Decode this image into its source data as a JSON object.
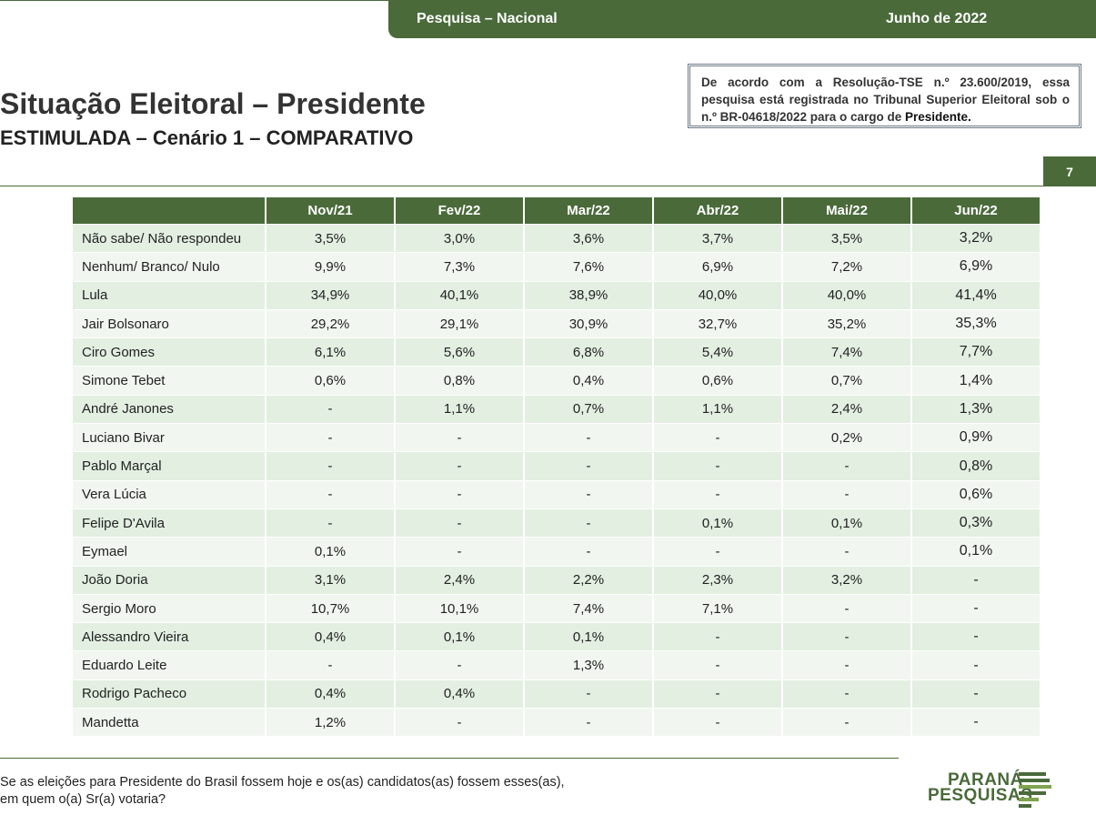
{
  "header": {
    "left_label": "Pesquisa – Nacional",
    "right_label": "Junho de 2022"
  },
  "title": "Situação Eleitoral – Presidente",
  "subtitle": "ESTIMULADA – Cenário 1 – COMPARATIVO",
  "notice": {
    "text": "De acordo com a Resolução-TSE n.º 23.600/2019, essa pesquisa está registrada no Tribunal Superior Eleitoral sob o n.º BR-04618/2022 para o cargo de ",
    "emphasis": "Presidente."
  },
  "page_number": "7",
  "table": {
    "columns": [
      "Nov/21",
      "Fev/22",
      "Mar/22",
      "Abr/22",
      "Mai/22",
      "Jun/22"
    ],
    "rows": [
      {
        "name": "Não sabe/ Não respondeu",
        "values": [
          "3,5%",
          "3,0%",
          "3,6%",
          "3,7%",
          "3,5%",
          "3,2%"
        ]
      },
      {
        "name": "Nenhum/ Branco/ Nulo",
        "values": [
          "9,9%",
          "7,3%",
          "7,6%",
          "6,9%",
          "7,2%",
          "6,9%"
        ]
      },
      {
        "name": "Lula",
        "values": [
          "34,9%",
          "40,1%",
          "38,9%",
          "40,0%",
          "40,0%",
          "41,4%"
        ]
      },
      {
        "name": "Jair Bolsonaro",
        "values": [
          "29,2%",
          "29,1%",
          "30,9%",
          "32,7%",
          "35,2%",
          "35,3%"
        ]
      },
      {
        "name": "Ciro Gomes",
        "values": [
          "6,1%",
          "5,6%",
          "6,8%",
          "5,4%",
          "7,4%",
          "7,7%"
        ]
      },
      {
        "name": "Simone Tebet",
        "values": [
          "0,6%",
          "0,8%",
          "0,4%",
          "0,6%",
          "0,7%",
          "1,4%"
        ]
      },
      {
        "name": "André Janones",
        "values": [
          "-",
          "1,1%",
          "0,7%",
          "1,1%",
          "2,4%",
          "1,3%"
        ]
      },
      {
        "name": "Luciano Bivar",
        "values": [
          "-",
          "-",
          "-",
          "-",
          "0,2%",
          "0,9%"
        ]
      },
      {
        "name": "Pablo Marçal",
        "values": [
          "-",
          "-",
          "-",
          "-",
          "-",
          "0,8%"
        ]
      },
      {
        "name": "Vera Lúcia",
        "values": [
          "-",
          "-",
          "-",
          "-",
          "-",
          "0,6%"
        ]
      },
      {
        "name": "Felipe D'Avila",
        "values": [
          "-",
          "-",
          "-",
          "0,1%",
          "0,1%",
          "0,3%"
        ]
      },
      {
        "name": "Eymael",
        "values": [
          "0,1%",
          "-",
          "-",
          "-",
          "-",
          "0,1%"
        ]
      },
      {
        "name": "João Doria",
        "values": [
          "3,1%",
          "2,4%",
          "2,2%",
          "2,3%",
          "3,2%",
          "-"
        ]
      },
      {
        "name": "Sergio Moro",
        "values": [
          "10,7%",
          "10,1%",
          "7,4%",
          "7,1%",
          "-",
          "-"
        ]
      },
      {
        "name": "Alessandro Vieira",
        "values": [
          "0,4%",
          "0,1%",
          "0,1%",
          "-",
          "-",
          "-"
        ]
      },
      {
        "name": "Eduardo Leite",
        "values": [
          "-",
          "-",
          "1,3%",
          "-",
          "-",
          "-"
        ]
      },
      {
        "name": "Rodrigo Pacheco",
        "values": [
          "0,4%",
          "0,4%",
          "-",
          "-",
          "-",
          "-"
        ]
      },
      {
        "name": "Mandetta",
        "values": [
          "1,2%",
          "-",
          "-",
          "-",
          "-",
          "-"
        ]
      }
    ]
  },
  "question": {
    "line1": "Se as eleições para Presidente do Brasil fossem hoje e os(as) candidatos(as) fossem esses(as),",
    "line2": "em quem o(a) Sr(a) votaria?"
  },
  "logo": {
    "line1": "PARANÁ",
    "line2": "PESQUISAS",
    "icon": "paraná-pesquisas-stripes-logo",
    "color": "#4a6a3a"
  },
  "colors": {
    "accent": "#4a6a3a",
    "row_odd": "#e2efe1",
    "row_even": "#f1f7f0"
  }
}
